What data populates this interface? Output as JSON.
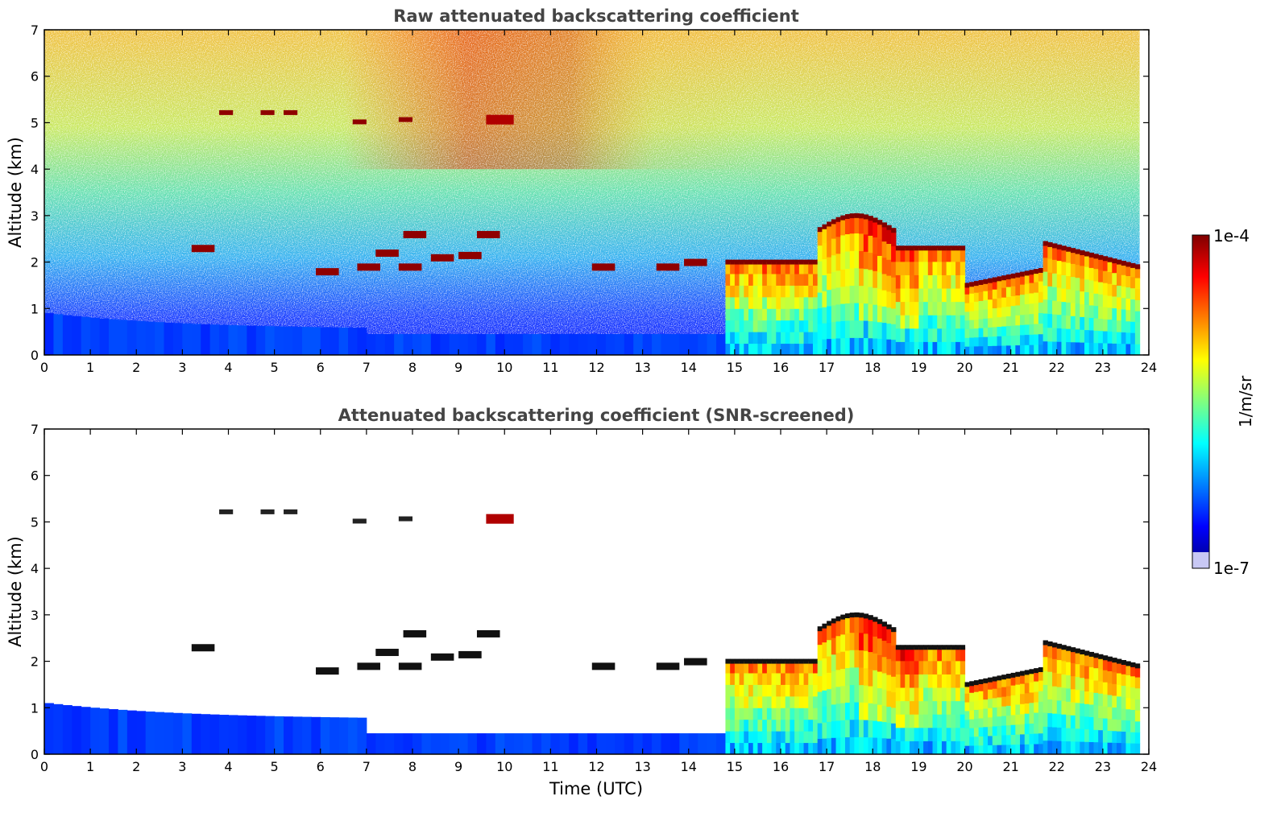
{
  "chart_data": [
    {
      "type": "heatmap",
      "title": "Raw attenuated backscattering coefficient",
      "xlabel": "",
      "ylabel": "Altitude (km)",
      "xlim": [
        0,
        24
      ],
      "ylim": [
        0,
        7
      ],
      "xticks": [
        "0",
        "1",
        "2",
        "3",
        "4",
        "5",
        "6",
        "7",
        "8",
        "9",
        "10",
        "11",
        "12",
        "13",
        "14",
        "15",
        "16",
        "17",
        "18",
        "19",
        "20",
        "21",
        "22",
        "23",
        "24"
      ],
      "yticks": [
        "0",
        "1",
        "2",
        "3",
        "4",
        "5",
        "6",
        "7"
      ],
      "features": [
        {
          "name": "aerosol boundary layer",
          "t_start": 0,
          "t_end": 24,
          "top_km": 0.5
        },
        {
          "name": "high cloud",
          "t_start": 9.5,
          "t_end": 10.2,
          "alt_km": 5.1
        },
        {
          "name": "mid cloud fragments",
          "t_start": 3,
          "t_end": 14.5,
          "alt_km": 2.0
        },
        {
          "name": "precipitating cloud",
          "t_start": 14.8,
          "t_end": 23.8,
          "top_km": 3.0
        },
        {
          "name": "stratocumulus top",
          "t_start": 20,
          "t_end": 23.8,
          "alt_km": 1.9
        }
      ]
    },
    {
      "type": "heatmap",
      "title": "Attenuated backscattering coefficient (SNR-screened)",
      "xlabel": "Time (UTC)",
      "ylabel": "Altitude (km)",
      "xlim": [
        0,
        24
      ],
      "ylim": [
        0,
        7
      ],
      "xticks": [
        "0",
        "1",
        "2",
        "3",
        "4",
        "5",
        "6",
        "7",
        "8",
        "9",
        "10",
        "11",
        "12",
        "13",
        "14",
        "15",
        "16",
        "17",
        "18",
        "19",
        "20",
        "21",
        "22",
        "23",
        "24"
      ],
      "yticks": [
        "0",
        "1",
        "2",
        "3",
        "4",
        "5",
        "6",
        "7"
      ]
    }
  ],
  "colorbar": {
    "label": "1/m/sr",
    "max_label": "1e-4",
    "min_label": "1e-7",
    "scale": "log",
    "colormap": "jet"
  }
}
